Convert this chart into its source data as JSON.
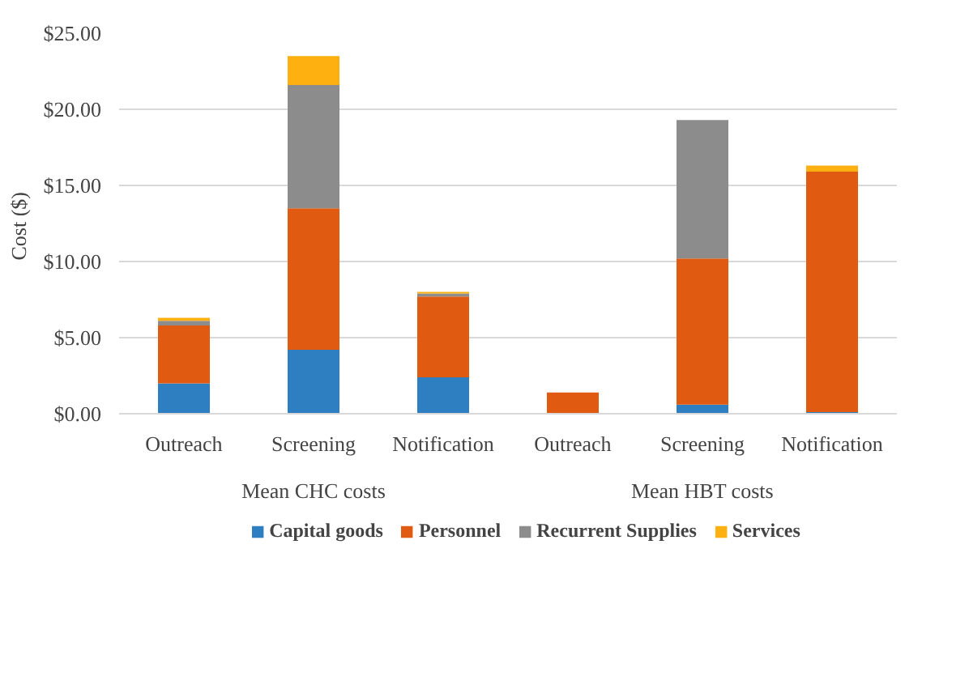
{
  "chart_data": {
    "type": "bar",
    "stacked": true,
    "ylabel": "Cost  ($)",
    "categories": [
      "Outreach",
      "Screening",
      "Notification",
      "Outreach",
      "Screening",
      "Notification"
    ],
    "annotations": [
      "Mean CHC costs",
      "Mean HBT costs"
    ],
    "series": [
      {
        "name": "Capital goods",
        "color": "#2e7ec2",
        "values": [
          2.0,
          4.2,
          2.4,
          0,
          0.6,
          0.1
        ]
      },
      {
        "name": "Personnel",
        "color": "#e05a12",
        "values": [
          3.8,
          9.3,
          5.3,
          1.4,
          9.6,
          15.8
        ]
      },
      {
        "name": "Recurrent Supplies",
        "color": "#8c8c8c",
        "values": [
          0.3,
          8.1,
          0.2,
          0,
          9.1,
          0
        ]
      },
      {
        "name": "Services",
        "color": "#fdb00f",
        "values": [
          0.2,
          1.9,
          0.1,
          0,
          0,
          0.4
        ]
      }
    ],
    "ylim": [
      0,
      25
    ],
    "yticks": [
      {
        "value": 0,
        "label": "$0.00"
      },
      {
        "value": 5,
        "label": "$5.00"
      },
      {
        "value": 10,
        "label": "$10.00"
      },
      {
        "value": 15,
        "label": "$15.00"
      },
      {
        "value": 20,
        "label": "$20.00"
      },
      {
        "value": 25,
        "label": "$25.00"
      }
    ],
    "grid": "y",
    "legend": "bottom"
  }
}
